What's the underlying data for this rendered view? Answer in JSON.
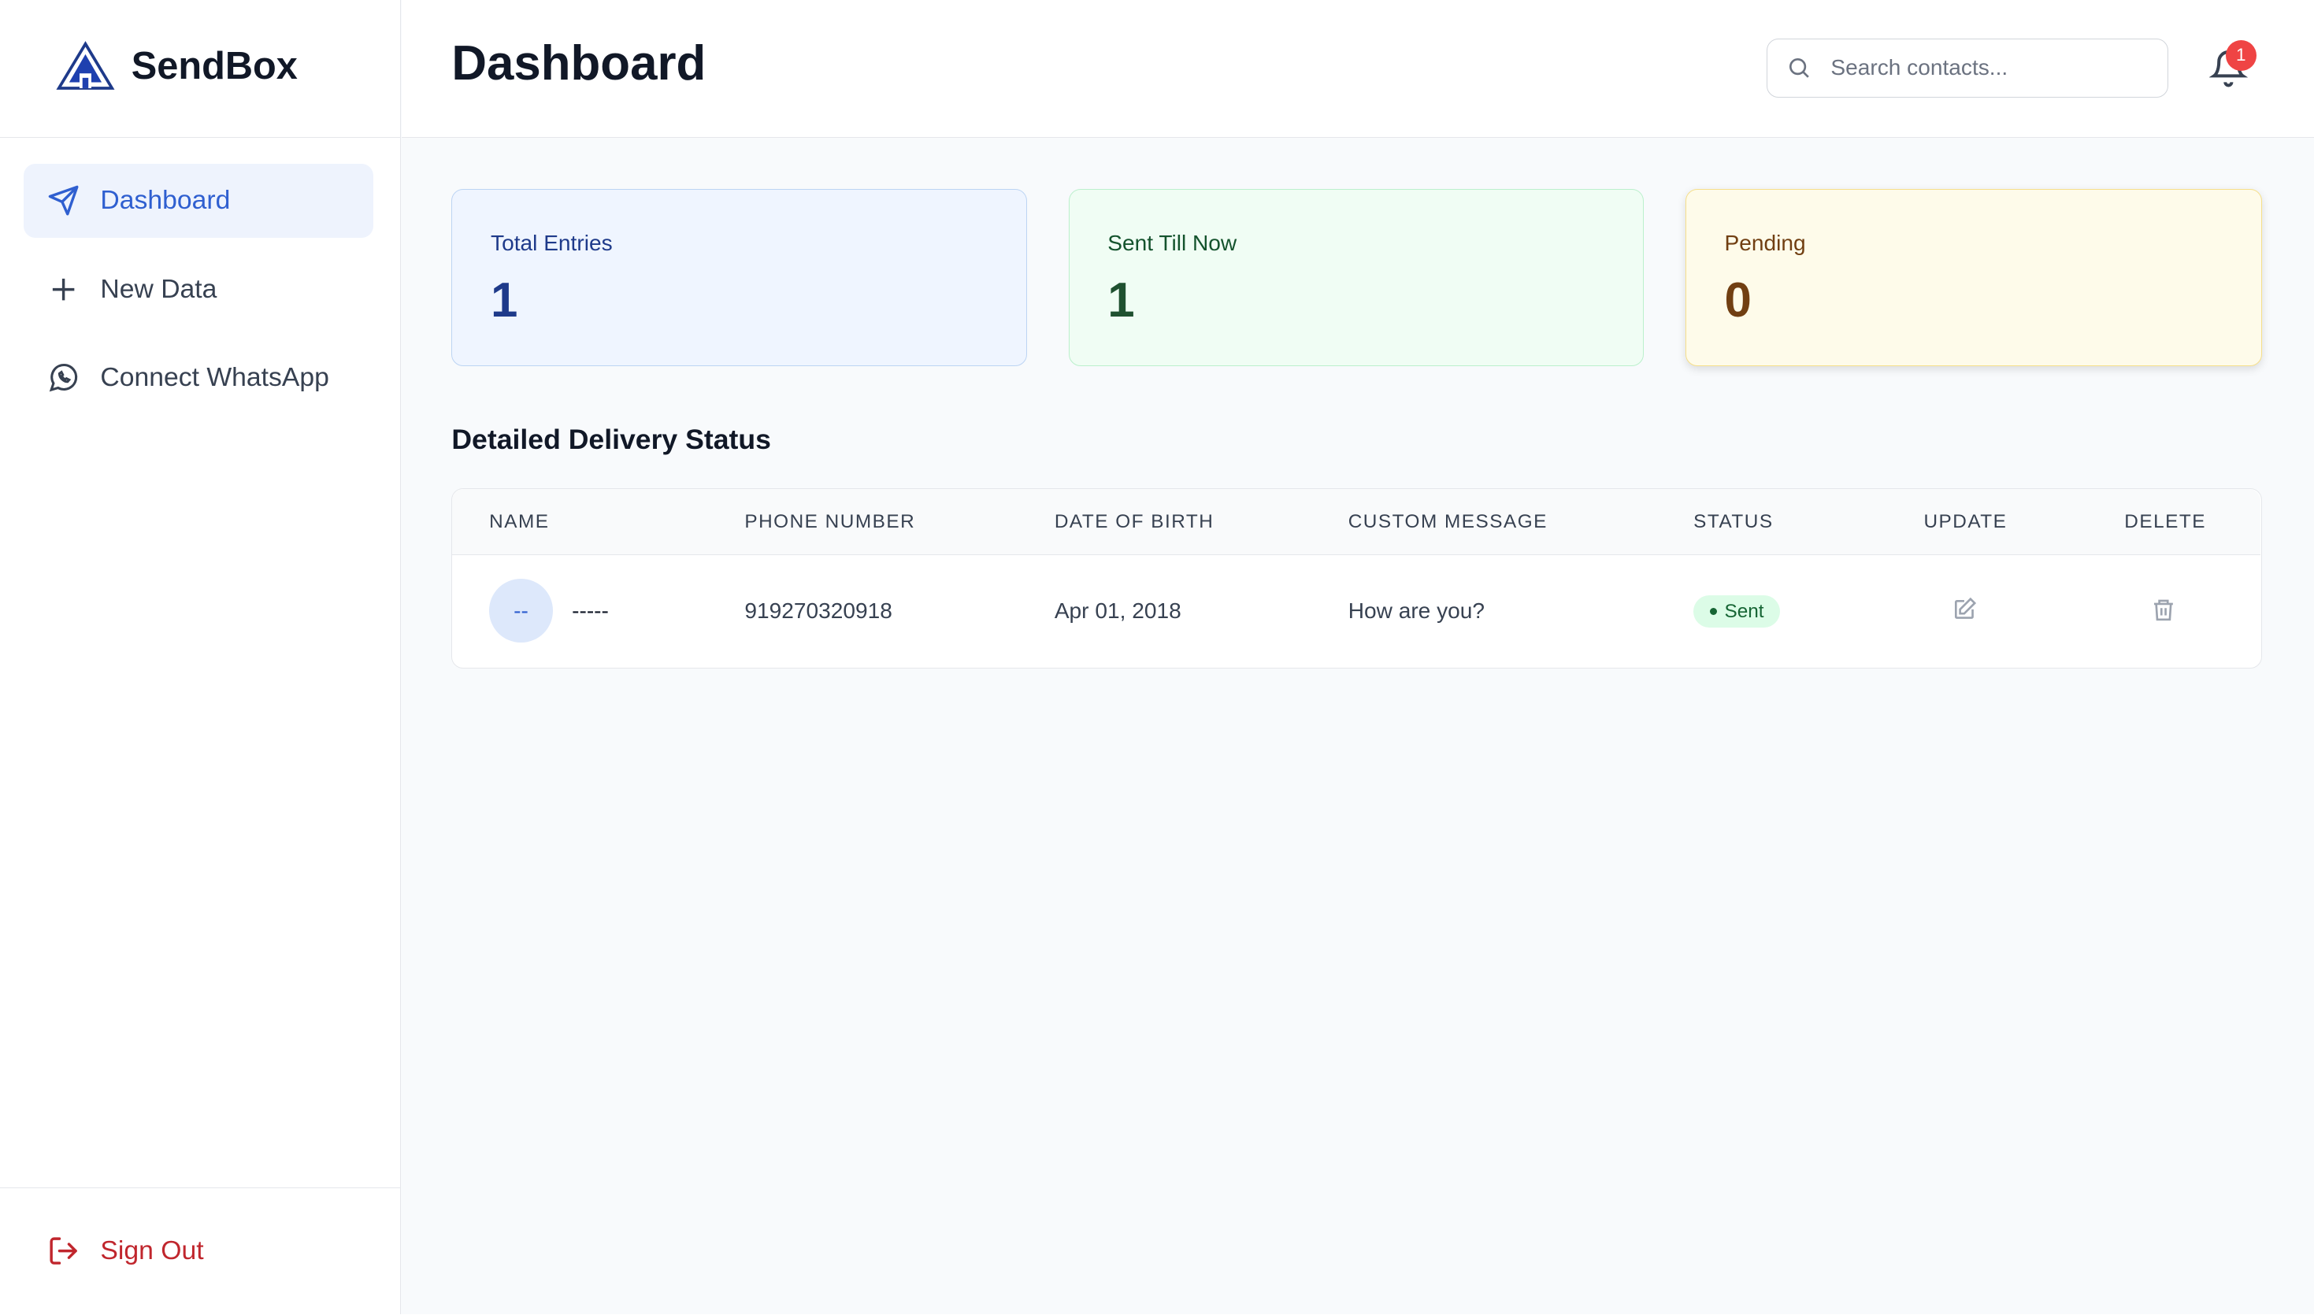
{
  "sidebar": {
    "brand": "SendBox",
    "nav": [
      "Dashboard",
      "New Data",
      "Connect WhatsApp"
    ],
    "sign_out": "Sign Out"
  },
  "header": {
    "title": "Dashboard",
    "search_placeholder": "Search contacts...",
    "notification_count": "1"
  },
  "stats": [
    {
      "label": "Total Entries",
      "value": "1"
    },
    {
      "label": "Sent Till Now",
      "value": "1"
    },
    {
      "label": "Pending",
      "value": "0"
    }
  ],
  "table": {
    "title": "Detailed Delivery Status",
    "columns": [
      "NAME",
      "PHONE NUMBER",
      "DATE OF BIRTH",
      "CUSTOM MESSAGE",
      "STATUS",
      "UPDATE",
      "DELETE"
    ],
    "rows": [
      {
        "avatar": "--",
        "name": "-----",
        "phone": "919270320918",
        "dob": "Apr 01, 2018",
        "message": "How are you?",
        "status": "Sent"
      }
    ]
  }
}
